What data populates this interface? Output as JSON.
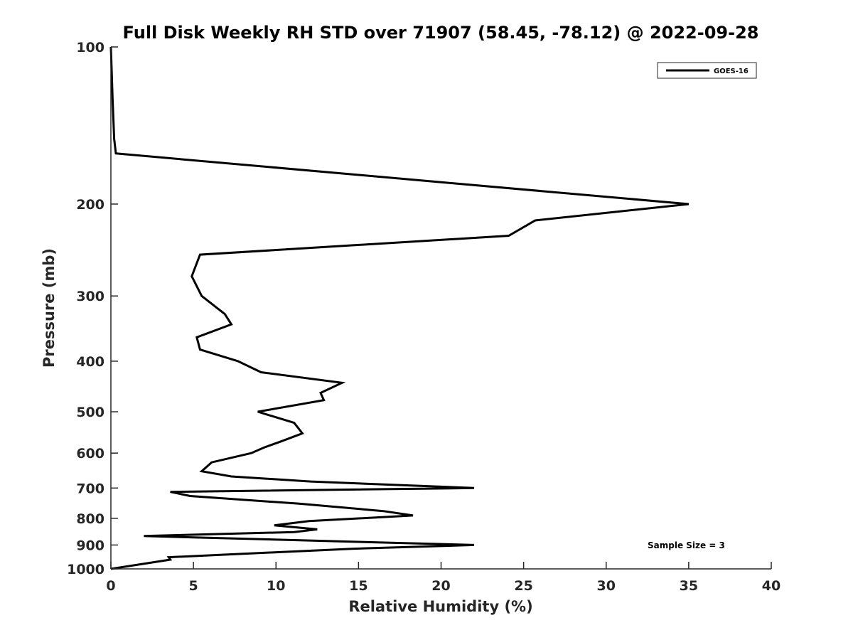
{
  "chart_data": {
    "type": "line",
    "title": "Full Disk Weekly RH STD over 71907 (58.45, -78.12) @ 2022-09-28",
    "xlabel": "Relative Humidity (%)",
    "ylabel": "Pressure (mb)",
    "xlim": [
      0,
      40
    ],
    "ylim": [
      100,
      1000
    ],
    "yscale": "log",
    "yreversed": true,
    "xticks": [
      0,
      5,
      10,
      15,
      20,
      25,
      30,
      35,
      40
    ],
    "yticks": [
      100,
      200,
      300,
      400,
      500,
      600,
      700,
      800,
      900,
      1000
    ],
    "grid": false,
    "legend_position": "top-right",
    "annotation": "Sample Size = 3",
    "series": [
      {
        "name": "GOES-16",
        "color": "#000000",
        "points": [
          [
            0.0,
            100
          ],
          [
            0.1,
            125
          ],
          [
            0.2,
            150
          ],
          [
            0.3,
            160
          ],
          [
            35.0,
            200
          ],
          [
            25.7,
            215
          ],
          [
            24.1,
            230
          ],
          [
            5.4,
            250
          ],
          [
            4.9,
            275
          ],
          [
            5.5,
            300
          ],
          [
            6.9,
            325
          ],
          [
            7.3,
            340
          ],
          [
            5.2,
            360
          ],
          [
            5.4,
            380
          ],
          [
            7.7,
            400
          ],
          [
            9.1,
            420
          ],
          [
            14.0,
            440
          ],
          [
            12.7,
            460
          ],
          [
            12.9,
            475
          ],
          [
            8.9,
            500
          ],
          [
            11.1,
            525
          ],
          [
            11.6,
            550
          ],
          [
            10.3,
            570
          ],
          [
            9.3,
            585
          ],
          [
            8.5,
            600
          ],
          [
            6.1,
            625
          ],
          [
            5.5,
            650
          ],
          [
            7.3,
            665
          ],
          [
            12.1,
            680
          ],
          [
            22.0,
            700
          ],
          [
            3.6,
            712
          ],
          [
            4.8,
            725
          ],
          [
            11.4,
            750
          ],
          [
            16.5,
            775
          ],
          [
            18.3,
            790
          ],
          [
            12.0,
            810
          ],
          [
            9.9,
            825
          ],
          [
            12.5,
            840
          ],
          [
            11.1,
            850
          ],
          [
            2.0,
            865
          ],
          [
            22.0,
            900
          ],
          [
            14.6,
            915
          ],
          [
            3.5,
            950
          ],
          [
            3.6,
            960
          ],
          [
            0.0,
            1000
          ]
        ]
      }
    ]
  }
}
